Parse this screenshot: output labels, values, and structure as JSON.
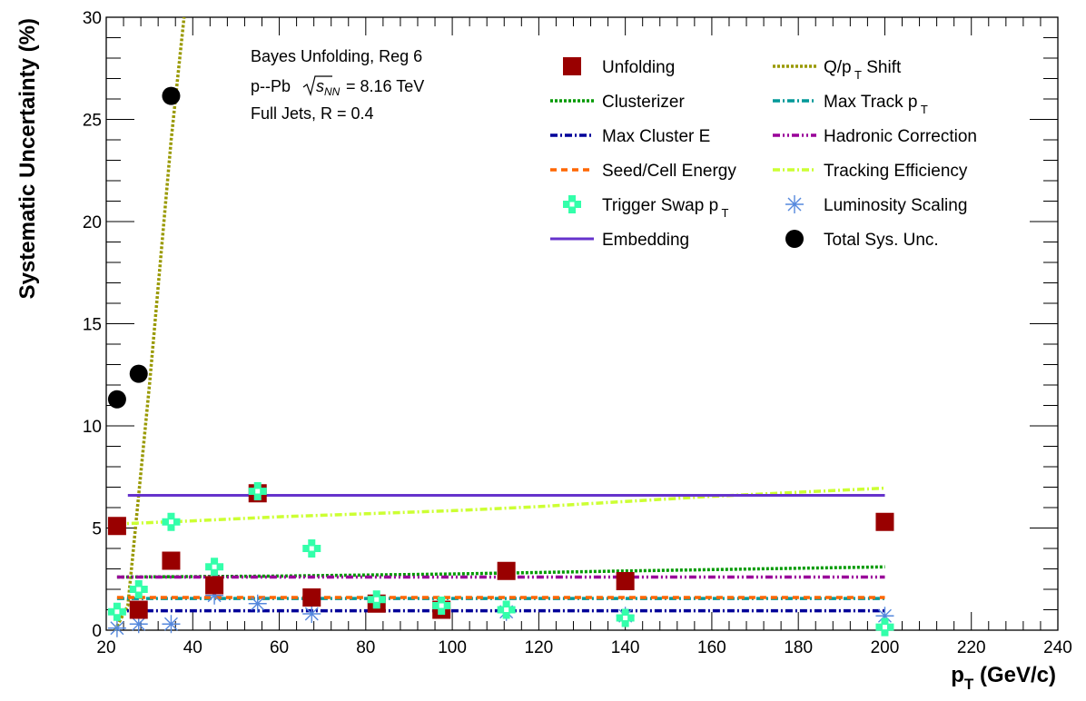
{
  "chart_data": {
    "type": "line",
    "xlabel_main": "p",
    "xlabel_sub": "T",
    "xlabel_unit": " (GeV/c)",
    "ylabel": "Systematic Uncertainty (%)",
    "xlim": [
      20,
      240
    ],
    "ylim": [
      0,
      30
    ],
    "xticks": [
      "20",
      "40",
      "60",
      "80",
      "100",
      "120",
      "140",
      "160",
      "180",
      "200",
      "220",
      "240"
    ],
    "yticks": [
      "0",
      "5",
      "10",
      "15",
      "20",
      "25",
      "30"
    ],
    "annotations": {
      "line1": "Bayes Unfolding, Reg 6",
      "line2_prefix": "p--Pb",
      "sqrt_s": "s",
      "sqrt_sub": "NN",
      "line2_suffix": " = 8.16 TeV",
      "line3": "Full Jets, R = 0.4"
    },
    "legend_position": "top-right",
    "series": [
      {
        "name": "Unfolding",
        "style": "marker-square",
        "color": "#990000",
        "x": [
          22.5,
          27.5,
          35,
          45,
          55,
          67.5,
          82.5,
          97.5,
          112.5,
          140,
          200
        ],
        "y": [
          5.1,
          1.0,
          3.4,
          2.2,
          6.7,
          1.6,
          1.3,
          1.0,
          2.9,
          2.4,
          5.3
        ]
      },
      {
        "name": "Q/p",
        "name_sub": "T",
        "name_suffix": " Shift",
        "style": "dotted-line",
        "color": "#999900",
        "x": [
          22,
          25,
          30,
          35,
          38
        ],
        "y": [
          0,
          1.2,
          12,
          24,
          30
        ]
      },
      {
        "name": "Clusterizer",
        "style": "dotted-line",
        "color": "#009900",
        "x": [
          22.5,
          60,
          100,
          140,
          200
        ],
        "y": [
          2.6,
          2.65,
          2.75,
          2.9,
          3.1
        ]
      },
      {
        "name": "Max Track p",
        "name_sub": "T",
        "style": "dashdot-line",
        "color": "#009999",
        "x": [
          22.5,
          200
        ],
        "y": [
          1.55,
          1.55
        ]
      },
      {
        "name": "Max Cluster E",
        "style": "dashdot-line",
        "color": "#000099",
        "x": [
          22.5,
          200
        ],
        "y": [
          0.95,
          0.95
        ]
      },
      {
        "name": "Hadronic Correction",
        "style": "dashdotdot-line",
        "color": "#990099",
        "x": [
          22.5,
          200
        ],
        "y": [
          2.6,
          2.6
        ]
      },
      {
        "name": "Seed/Cell Energy",
        "style": "dashed-line",
        "color": "#ff6600",
        "x": [
          22.5,
          200
        ],
        "y": [
          1.6,
          1.6
        ]
      },
      {
        "name": "Tracking Efficiency",
        "style": "dashdot-line",
        "color": "#ccff33",
        "x": [
          22.5,
          40,
          60,
          80,
          100,
          120,
          140,
          160,
          180,
          200
        ],
        "y": [
          5.2,
          5.35,
          5.55,
          5.7,
          5.85,
          6.05,
          6.3,
          6.55,
          6.75,
          6.95
        ]
      },
      {
        "name": "Trigger Swap p",
        "name_sub": "T",
        "style": "marker-cross",
        "color": "#33ffaa",
        "x": [
          22.5,
          27.5,
          35,
          45,
          55,
          67.5,
          82.5,
          97.5,
          112.5,
          140,
          200
        ],
        "y": [
          0.9,
          2.0,
          5.3,
          3.1,
          6.8,
          4.0,
          1.5,
          1.2,
          1.0,
          0.6,
          0.15
        ]
      },
      {
        "name": "Luminosity Scaling",
        "style": "marker-star",
        "color": "#5588dd",
        "x": [
          22.5,
          27.5,
          35,
          45,
          55,
          67.5,
          82.5,
          97.5,
          112.5,
          140,
          200
        ],
        "y": [
          0.1,
          0.3,
          0.3,
          1.7,
          1.3,
          0.8,
          1.4,
          1.1,
          0.9,
          0.7,
          0.7
        ]
      },
      {
        "name": "Embedding",
        "style": "solid-line",
        "color": "#6633cc",
        "x": [
          25,
          200
        ],
        "y": [
          6.6,
          6.6
        ]
      },
      {
        "name": "Total Sys. Unc.",
        "style": "marker-circle",
        "color": "#000000",
        "x": [
          22.5,
          27.5,
          35
        ],
        "y": [
          11.3,
          12.55,
          26.15
        ]
      }
    ]
  }
}
